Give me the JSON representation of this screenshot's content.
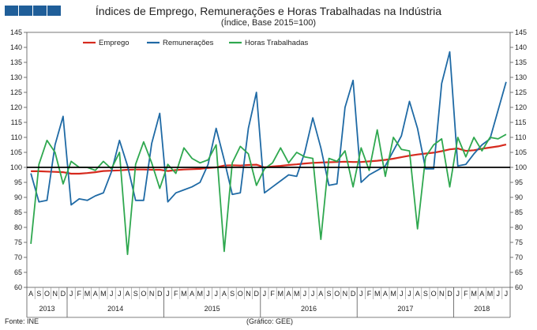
{
  "header": {
    "logo_blocks": 4
  },
  "footer": {
    "source": "Fonte: INE",
    "credit": "(Gráfico: GEE)"
  },
  "chart_data": {
    "type": "line",
    "title": "Índices de Emprego, Remunerações e Horas Trabalhadas na Indústria",
    "subtitle": "(Índice, Base 2015=100)",
    "xlabel": "",
    "ylabel": "",
    "ylim": [
      60,
      145
    ],
    "ytick_step": 5,
    "reference_line": 100,
    "month_letters": [
      "A",
      "S",
      "O",
      "N",
      "D",
      "J",
      "F",
      "M",
      "A",
      "M",
      "J",
      "J",
      "A",
      "S",
      "O",
      "N",
      "D",
      "J",
      "F",
      "M",
      "A",
      "M",
      "J",
      "J",
      "A",
      "S",
      "O",
      "N",
      "D",
      "J",
      "F",
      "M",
      "A",
      "M",
      "J",
      "J",
      "A",
      "S",
      "O",
      "N",
      "D",
      "J",
      "F",
      "M",
      "A",
      "M",
      "J",
      "J",
      "A",
      "S",
      "O",
      "N",
      "D",
      "J",
      "F",
      "M",
      "A",
      "M",
      "J",
      "J"
    ],
    "years": [
      {
        "label": "2013",
        "start": 0,
        "count": 5
      },
      {
        "label": "2014",
        "start": 5,
        "count": 12
      },
      {
        "label": "2015",
        "start": 17,
        "count": 12
      },
      {
        "label": "2016",
        "start": 29,
        "count": 12
      },
      {
        "label": "2017",
        "start": 41,
        "count": 12
      },
      {
        "label": "2018",
        "start": 53,
        "count": 7
      }
    ],
    "legend": [
      "Emprego",
      "Remunerações",
      "Horas Trabalhadas"
    ],
    "series": [
      {
        "name": "Emprego",
        "color": "#d62a1e",
        "values": [
          98.7,
          98.7,
          98.6,
          98.5,
          98.4,
          97.9,
          97.9,
          98.1,
          98.4,
          98.8,
          98.9,
          99.0,
          99.2,
          99.3,
          99.3,
          99.2,
          99.2,
          98.8,
          99.1,
          99.3,
          99.4,
          99.5,
          99.8,
          100.0,
          100.6,
          100.7,
          100.6,
          100.8,
          100.9,
          100.0,
          100.3,
          100.5,
          100.8,
          101.0,
          101.3,
          101.5,
          101.6,
          101.7,
          101.8,
          101.9,
          101.8,
          101.8,
          102.0,
          102.2,
          102.5,
          102.9,
          103.4,
          103.9,
          104.3,
          104.6,
          104.9,
          105.4,
          106.0,
          106.3,
          105.5,
          105.7,
          106.2,
          106.6,
          107.0,
          107.6
        ]
      },
      {
        "name": "Remunerações",
        "color": "#1f6aa5",
        "values": [
          98.0,
          88.5,
          89.0,
          107.5,
          117.0,
          87.5,
          89.5,
          89.0,
          90.5,
          91.5,
          98.5,
          109.0,
          100.5,
          89.0,
          89.0,
          108.0,
          118.0,
          88.5,
          91.5,
          92.5,
          93.5,
          95.0,
          101.0,
          113.0,
          102.5,
          91.0,
          91.5,
          113.0,
          125.0,
          91.5,
          93.5,
          95.5,
          97.5,
          97.0,
          105.0,
          116.5,
          106.5,
          94.0,
          94.5,
          120.0,
          129.0,
          95.0,
          97.5,
          99.0,
          100.5,
          105.5,
          110.5,
          122.0,
          113.0,
          99.5,
          99.5,
          128.0,
          138.5,
          100.5,
          101.0,
          104.5,
          107.5,
          109.5,
          119.0,
          128.5
        ]
      },
      {
        "name": "Horas Trabalhadas",
        "color": "#2fa84f",
        "values": [
          74.5,
          101.0,
          109.0,
          105.0,
          94.5,
          102.0,
          100.0,
          100.0,
          99.0,
          102.0,
          99.5,
          105.0,
          71.0,
          101.0,
          108.5,
          101.5,
          93.0,
          101.0,
          98.0,
          106.5,
          103.0,
          101.5,
          102.5,
          107.5,
          72.0,
          101.5,
          107.0,
          104.5,
          94.0,
          99.5,
          101.5,
          106.5,
          101.5,
          105.0,
          103.5,
          103.0,
          76.0,
          103.0,
          102.0,
          105.5,
          93.5,
          106.5,
          99.0,
          112.5,
          97.0,
          110.0,
          106.0,
          105.5,
          79.5,
          103.5,
          107.5,
          109.5,
          93.5,
          110.0,
          103.5,
          110.0,
          105.5,
          110.0,
          109.5,
          111.0
        ]
      }
    ]
  }
}
